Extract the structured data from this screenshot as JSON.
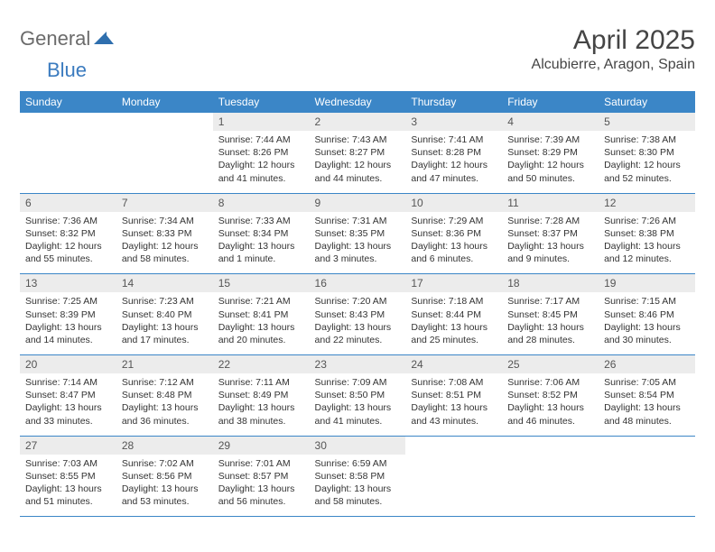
{
  "brand": {
    "word1": "General",
    "word2": "Blue"
  },
  "title": "April 2025",
  "location": "Alcubierre, Aragon, Spain",
  "colors": {
    "header_bg": "#3b86c7",
    "header_text": "#ffffff",
    "daynum_bg": "#ececec",
    "row_border": "#3b86c7",
    "body_text": "#333333",
    "title_text": "#454545",
    "logo_gray": "#6b6b6b",
    "logo_blue": "#3b7bbf"
  },
  "weekdays": [
    "Sunday",
    "Monday",
    "Tuesday",
    "Wednesday",
    "Thursday",
    "Friday",
    "Saturday"
  ],
  "weeks": [
    [
      null,
      null,
      {
        "n": "1",
        "sr": "7:44 AM",
        "ss": "8:26 PM",
        "dl": "12 hours and 41 minutes."
      },
      {
        "n": "2",
        "sr": "7:43 AM",
        "ss": "8:27 PM",
        "dl": "12 hours and 44 minutes."
      },
      {
        "n": "3",
        "sr": "7:41 AM",
        "ss": "8:28 PM",
        "dl": "12 hours and 47 minutes."
      },
      {
        "n": "4",
        "sr": "7:39 AM",
        "ss": "8:29 PM",
        "dl": "12 hours and 50 minutes."
      },
      {
        "n": "5",
        "sr": "7:38 AM",
        "ss": "8:30 PM",
        "dl": "12 hours and 52 minutes."
      }
    ],
    [
      {
        "n": "6",
        "sr": "7:36 AM",
        "ss": "8:32 PM",
        "dl": "12 hours and 55 minutes."
      },
      {
        "n": "7",
        "sr": "7:34 AM",
        "ss": "8:33 PM",
        "dl": "12 hours and 58 minutes."
      },
      {
        "n": "8",
        "sr": "7:33 AM",
        "ss": "8:34 PM",
        "dl": "13 hours and 1 minute."
      },
      {
        "n": "9",
        "sr": "7:31 AM",
        "ss": "8:35 PM",
        "dl": "13 hours and 3 minutes."
      },
      {
        "n": "10",
        "sr": "7:29 AM",
        "ss": "8:36 PM",
        "dl": "13 hours and 6 minutes."
      },
      {
        "n": "11",
        "sr": "7:28 AM",
        "ss": "8:37 PM",
        "dl": "13 hours and 9 minutes."
      },
      {
        "n": "12",
        "sr": "7:26 AM",
        "ss": "8:38 PM",
        "dl": "13 hours and 12 minutes."
      }
    ],
    [
      {
        "n": "13",
        "sr": "7:25 AM",
        "ss": "8:39 PM",
        "dl": "13 hours and 14 minutes."
      },
      {
        "n": "14",
        "sr": "7:23 AM",
        "ss": "8:40 PM",
        "dl": "13 hours and 17 minutes."
      },
      {
        "n": "15",
        "sr": "7:21 AM",
        "ss": "8:41 PM",
        "dl": "13 hours and 20 minutes."
      },
      {
        "n": "16",
        "sr": "7:20 AM",
        "ss": "8:43 PM",
        "dl": "13 hours and 22 minutes."
      },
      {
        "n": "17",
        "sr": "7:18 AM",
        "ss": "8:44 PM",
        "dl": "13 hours and 25 minutes."
      },
      {
        "n": "18",
        "sr": "7:17 AM",
        "ss": "8:45 PM",
        "dl": "13 hours and 28 minutes."
      },
      {
        "n": "19",
        "sr": "7:15 AM",
        "ss": "8:46 PM",
        "dl": "13 hours and 30 minutes."
      }
    ],
    [
      {
        "n": "20",
        "sr": "7:14 AM",
        "ss": "8:47 PM",
        "dl": "13 hours and 33 minutes."
      },
      {
        "n": "21",
        "sr": "7:12 AM",
        "ss": "8:48 PM",
        "dl": "13 hours and 36 minutes."
      },
      {
        "n": "22",
        "sr": "7:11 AM",
        "ss": "8:49 PM",
        "dl": "13 hours and 38 minutes."
      },
      {
        "n": "23",
        "sr": "7:09 AM",
        "ss": "8:50 PM",
        "dl": "13 hours and 41 minutes."
      },
      {
        "n": "24",
        "sr": "7:08 AM",
        "ss": "8:51 PM",
        "dl": "13 hours and 43 minutes."
      },
      {
        "n": "25",
        "sr": "7:06 AM",
        "ss": "8:52 PM",
        "dl": "13 hours and 46 minutes."
      },
      {
        "n": "26",
        "sr": "7:05 AM",
        "ss": "8:54 PM",
        "dl": "13 hours and 48 minutes."
      }
    ],
    [
      {
        "n": "27",
        "sr": "7:03 AM",
        "ss": "8:55 PM",
        "dl": "13 hours and 51 minutes."
      },
      {
        "n": "28",
        "sr": "7:02 AM",
        "ss": "8:56 PM",
        "dl": "13 hours and 53 minutes."
      },
      {
        "n": "29",
        "sr": "7:01 AM",
        "ss": "8:57 PM",
        "dl": "13 hours and 56 minutes."
      },
      {
        "n": "30",
        "sr": "6:59 AM",
        "ss": "8:58 PM",
        "dl": "13 hours and 58 minutes."
      },
      null,
      null,
      null
    ]
  ],
  "labels": {
    "sunrise": "Sunrise:",
    "sunset": "Sunset:",
    "daylight": "Daylight:"
  }
}
